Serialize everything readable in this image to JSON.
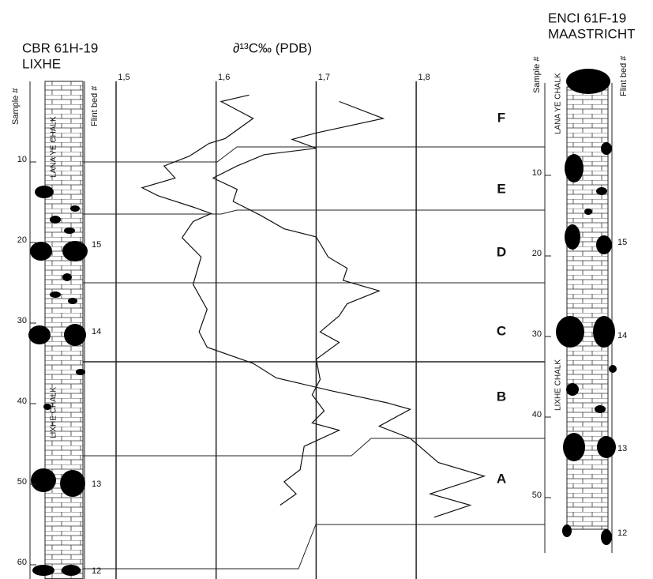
{
  "chart_data": {
    "type": "line",
    "title": "∂¹³C‰ (PDB)",
    "xlim": [
      1.5,
      1.875
    ],
    "xticks": [
      {
        "value": 1.5,
        "label": "1,5"
      },
      {
        "value": 1.6,
        "label": "1,6"
      },
      {
        "value": 1.7,
        "label": "1,7"
      },
      {
        "value": 1.8,
        "label": "1,8"
      }
    ],
    "grid": true,
    "series": [
      {
        "color": "#111111",
        "depth": [
          1.7,
          2.5,
          4.6,
          7.1,
          7.7,
          9.3,
          10.5,
          12.0,
          13.2,
          14.2,
          15.6,
          16.4,
          17.4,
          19.4,
          21.8,
          25.2,
          28.3,
          31.1,
          33.0,
          35.0,
          36.8,
          38.4,
          39.9,
          40.7,
          42.8,
          44.3,
          47.3,
          49.0,
          51.2,
          52.6,
          54.1
        ],
        "values": [
          1.633,
          1.605,
          1.637,
          1.609,
          1.593,
          1.573,
          1.548,
          1.559,
          1.526,
          1.542,
          1.577,
          1.595,
          1.577,
          1.566,
          1.585,
          1.577,
          1.591,
          1.583,
          1.591,
          1.637,
          1.66,
          1.715,
          1.771,
          1.794,
          1.763,
          1.794,
          1.822,
          1.868,
          1.814,
          1.854,
          1.818
        ]
      },
      {
        "color": "#111111",
        "depth": [
          2.5,
          4.6,
          6.4,
          7.2,
          8.3,
          9.1,
          10.5,
          12.0,
          13.4,
          14.9,
          16.6,
          18.3,
          19.3,
          21.8,
          23.2,
          24.7,
          26.0,
          27.6,
          29.1,
          31.1,
          32.4,
          34.5,
          37.0,
          38.9,
          40.9,
          42.4,
          43.3,
          45.3,
          48.2,
          49.7,
          51.2,
          52.6
        ],
        "values": [
          1.723,
          1.767,
          1.7,
          1.676,
          1.7,
          1.648,
          1.621,
          1.597,
          1.621,
          1.617,
          1.644,
          1.668,
          1.7,
          1.712,
          1.731,
          1.727,
          1.763,
          1.731,
          1.723,
          1.704,
          1.723,
          1.7,
          1.704,
          1.696,
          1.708,
          1.696,
          1.723,
          1.688,
          1.684,
          1.668,
          1.68,
          1.664
        ]
      }
    ],
    "zones": [
      "F",
      "E",
      "D",
      "C",
      "B",
      "A"
    ]
  },
  "left_column": {
    "name": "CBR 61H-19",
    "place": "LIXHE",
    "sample_label": "Sample #",
    "flint_label": "Flint bed #",
    "sample_ticks": [
      10,
      20,
      30,
      40,
      50,
      60
    ],
    "flint_beds": [
      15,
      14,
      13,
      12
    ],
    "units": [
      "LANA YE CHALK",
      "LIXHE CHALK"
    ]
  },
  "right_column": {
    "name": "ENCI 61F-19",
    "place": "MAASTRICHT",
    "sample_label": "Sample #",
    "flint_label": "Flint bed #",
    "sample_ticks": [
      10,
      20,
      30,
      40,
      50
    ],
    "flint_beds": [
      15,
      14,
      13,
      12
    ],
    "units": [
      "LANA YE CHALK",
      "LIXHE CHALK"
    ]
  }
}
